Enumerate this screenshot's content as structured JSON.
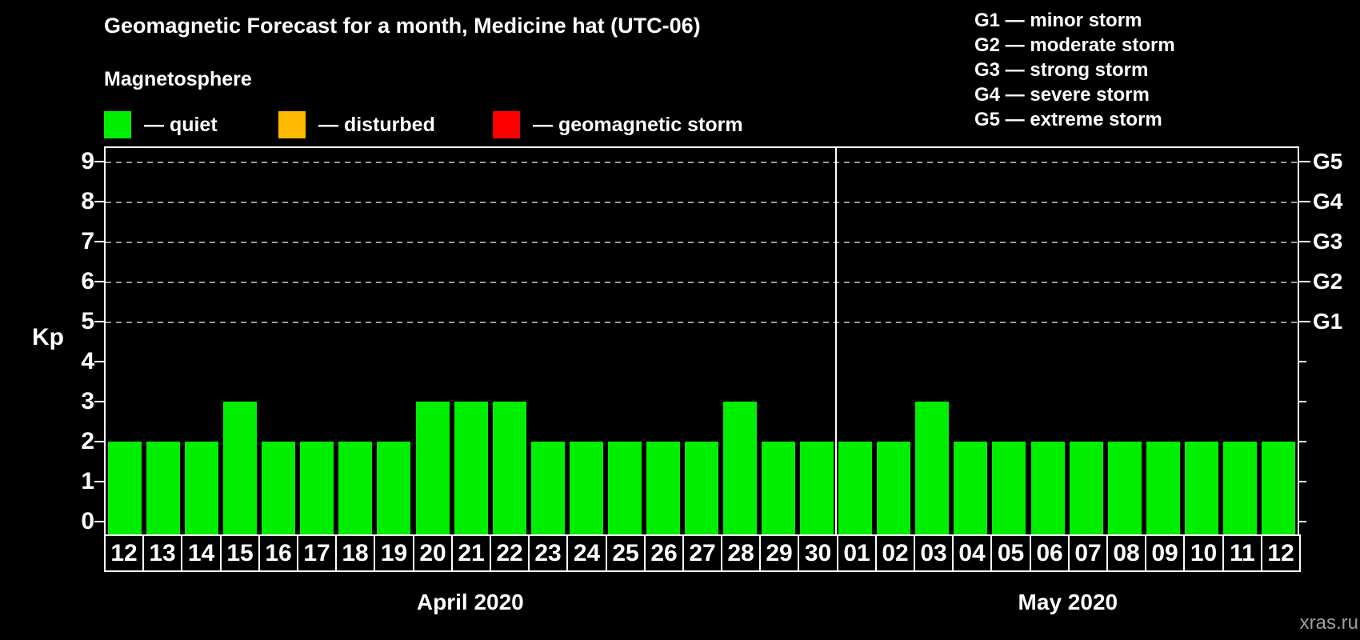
{
  "title": "Geomagnetic Forecast for a month, Medicine hat (UTC-06)",
  "magnetosphere": {
    "heading": "Magnetosphere",
    "items": [
      {
        "name": "quiet",
        "label": "— quiet",
        "color": "#00ee00"
      },
      {
        "name": "disturbed",
        "label": "— disturbed",
        "color": "#ffb900"
      },
      {
        "name": "geomagnetic-storm",
        "label": "— geomagnetic storm",
        "color": "#ff0000"
      }
    ]
  },
  "storm_scale_legend": [
    "G1 — minor storm",
    "G2 — moderate storm",
    "G3 — strong storm",
    "G4 — severe storm",
    "G5 — extreme storm"
  ],
  "watermark": "xras.ru",
  "chart_data": {
    "type": "bar",
    "title": "Geomagnetic Forecast for a month, Medicine hat (UTC-06)",
    "ylabel": "Kp",
    "ylim": [
      0,
      9.4
    ],
    "yticks_left": [
      0,
      1,
      2,
      3,
      4,
      5,
      6,
      7,
      8,
      9
    ],
    "right_axis_labels": [
      {
        "kp": 5,
        "label": "G1"
      },
      {
        "kp": 6,
        "label": "G2"
      },
      {
        "kp": 7,
        "label": "G3"
      },
      {
        "kp": 8,
        "label": "G4"
      },
      {
        "kp": 9,
        "label": "G5"
      }
    ],
    "gridlines_at_kp": [
      5,
      6,
      7,
      8,
      9
    ],
    "grid_style": "dashed",
    "bar_color": "#00ee00",
    "sections": [
      {
        "month_label": "April 2020",
        "days": [
          "12",
          "13",
          "14",
          "15",
          "16",
          "17",
          "18",
          "19",
          "20",
          "21",
          "22",
          "23",
          "24",
          "25",
          "26",
          "27",
          "28",
          "29",
          "30"
        ],
        "values": [
          2,
          2,
          2,
          3,
          2,
          2,
          2,
          2,
          3,
          3,
          3,
          2,
          2,
          2,
          2,
          2,
          3,
          2,
          2
        ]
      },
      {
        "month_label": "May 2020",
        "days": [
          "01",
          "02",
          "03",
          "04",
          "05",
          "06",
          "07",
          "08",
          "09",
          "10",
          "11",
          "12"
        ],
        "values": [
          2,
          2,
          3,
          2,
          2,
          2,
          2,
          2,
          2,
          2,
          2,
          2
        ]
      }
    ]
  }
}
